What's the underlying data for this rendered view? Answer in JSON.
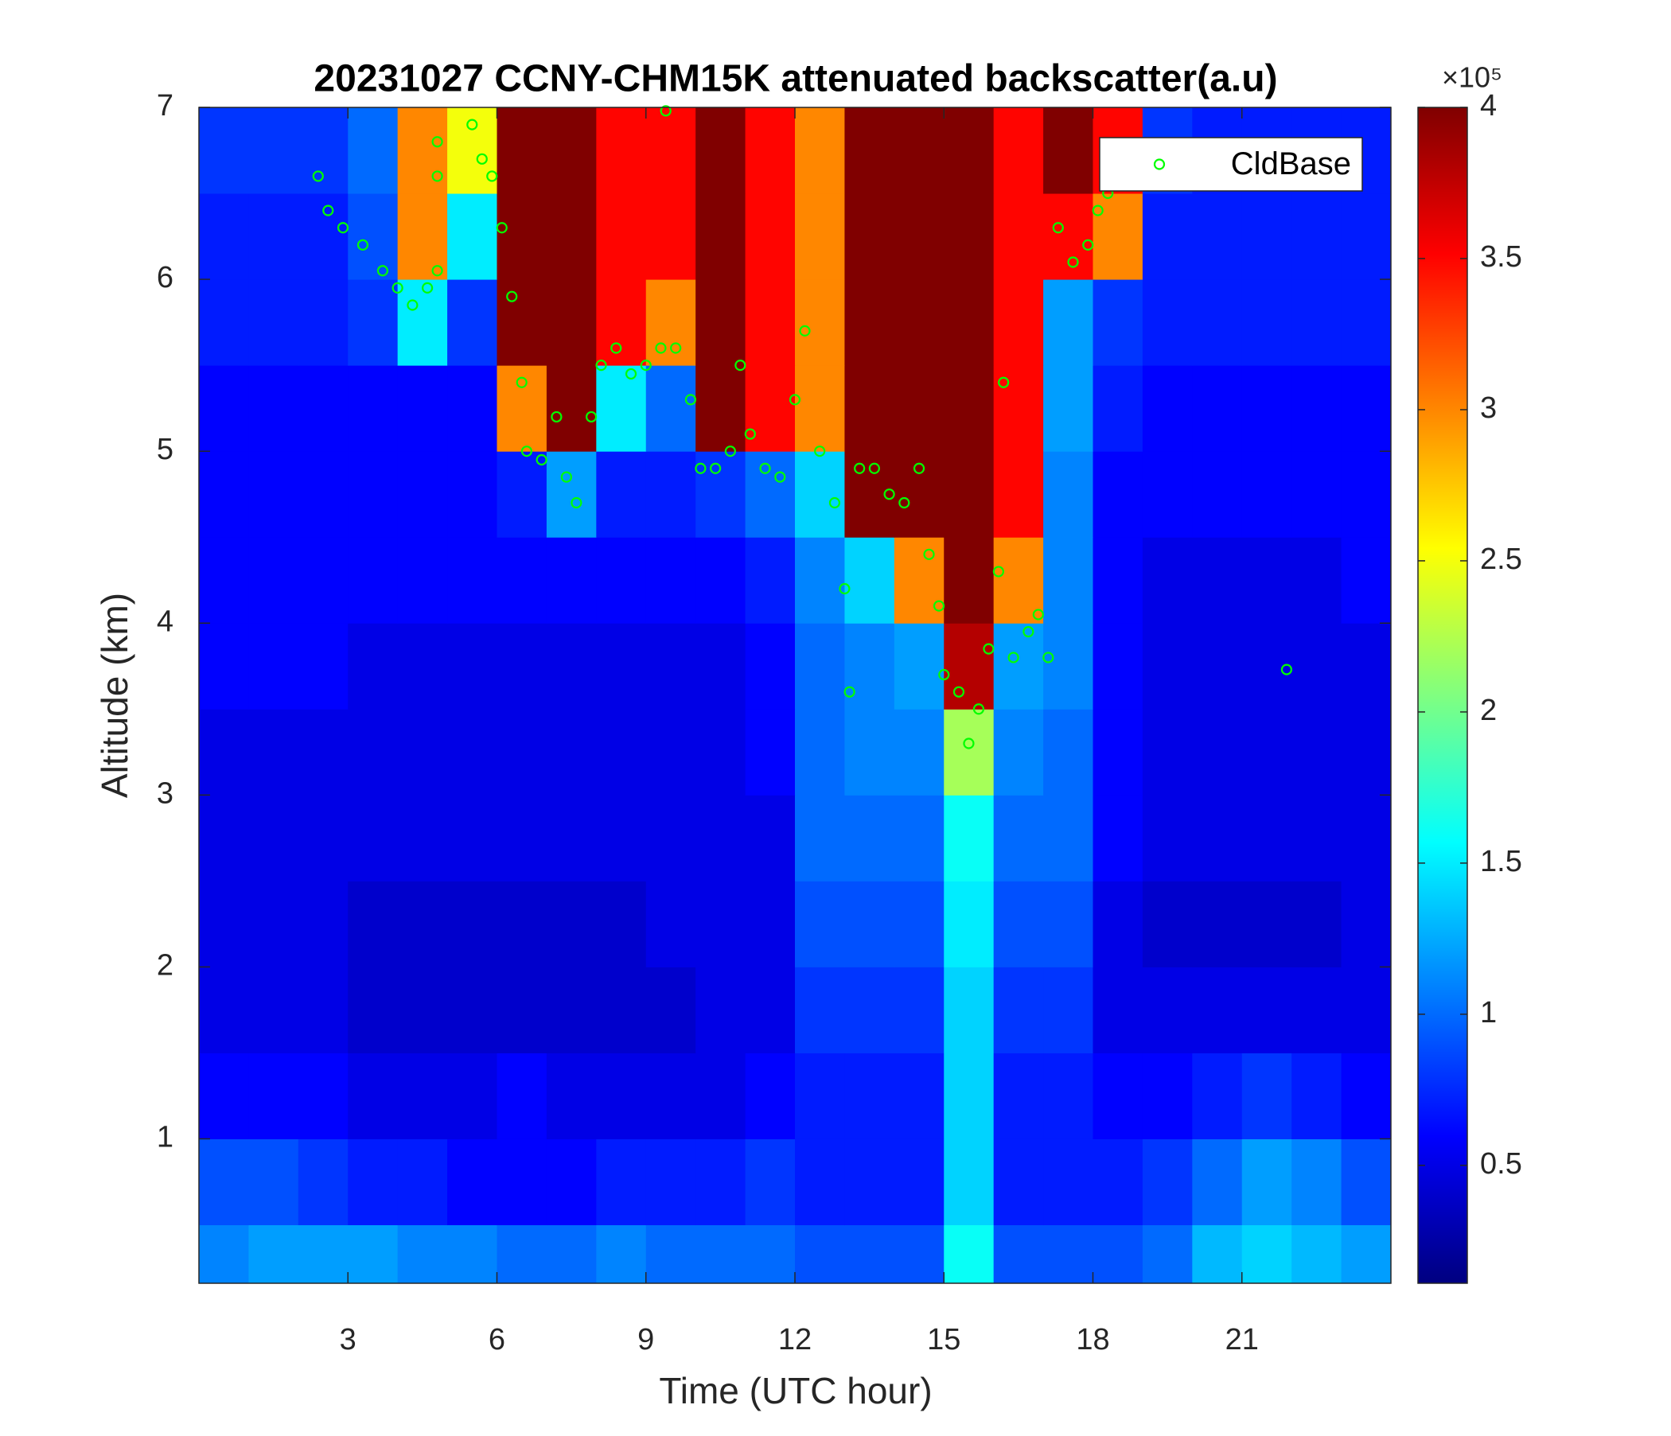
{
  "chart_data": {
    "type": "heatmap",
    "title": "20231027 CCNY-CHM15K attenuated backscatter(a.u)",
    "xlabel": "Time (UTC hour)",
    "ylabel": "Altitude (km)",
    "xlim": [
      0,
      24
    ],
    "ylim": [
      0.16,
      7
    ],
    "xticks": [
      3,
      6,
      9,
      12,
      15,
      18,
      21
    ],
    "yticks": [
      1,
      2,
      3,
      4,
      5,
      6,
      7
    ],
    "x_edges": [
      0,
      1,
      2,
      3,
      4,
      5,
      6,
      7,
      8,
      9,
      10,
      11,
      12,
      13,
      14,
      15,
      16,
      17,
      18,
      19,
      20,
      21,
      22,
      23,
      24
    ],
    "y_edges": [
      0.16,
      0.5,
      1,
      1.5,
      2,
      2.5,
      3,
      3.5,
      4,
      4.5,
      5,
      5.5,
      6,
      6.5,
      7
    ],
    "z": [
      [
        1.1,
        1.2,
        1.2,
        1.2,
        1.1,
        1.1,
        1.0,
        1.0,
        1.1,
        1.0,
        1.0,
        1.0,
        0.9,
        0.9,
        0.9,
        1.6,
        0.9,
        0.9,
        0.9,
        1.0,
        1.3,
        1.4,
        1.3,
        1.2
      ],
      [
        0.9,
        0.9,
        0.8,
        0.7,
        0.7,
        0.6,
        0.6,
        0.6,
        0.7,
        0.7,
        0.7,
        0.8,
        0.7,
        0.7,
        0.7,
        1.4,
        0.7,
        0.7,
        0.7,
        0.8,
        1.0,
        1.2,
        1.1,
        0.9
      ],
      [
        0.6,
        0.6,
        0.6,
        0.5,
        0.5,
        0.5,
        0.6,
        0.5,
        0.5,
        0.5,
        0.5,
        0.6,
        0.7,
        0.7,
        0.7,
        1.4,
        0.7,
        0.7,
        0.6,
        0.6,
        0.7,
        0.8,
        0.7,
        0.6
      ],
      [
        0.5,
        0.5,
        0.5,
        0.4,
        0.4,
        0.4,
        0.4,
        0.4,
        0.4,
        0.4,
        0.5,
        0.5,
        0.8,
        0.8,
        0.8,
        1.4,
        0.8,
        0.8,
        0.5,
        0.5,
        0.5,
        0.5,
        0.5,
        0.5
      ],
      [
        0.5,
        0.5,
        0.5,
        0.4,
        0.4,
        0.4,
        0.4,
        0.4,
        0.4,
        0.5,
        0.5,
        0.5,
        0.9,
        0.9,
        0.9,
        1.5,
        0.9,
        0.9,
        0.5,
        0.4,
        0.4,
        0.4,
        0.4,
        0.5
      ],
      [
        0.5,
        0.5,
        0.5,
        0.5,
        0.5,
        0.5,
        0.5,
        0.5,
        0.5,
        0.5,
        0.5,
        0.5,
        1.0,
        1.0,
        1.0,
        1.6,
        1.0,
        1.0,
        0.6,
        0.5,
        0.5,
        0.5,
        0.5,
        0.5
      ],
      [
        0.5,
        0.5,
        0.5,
        0.5,
        0.5,
        0.5,
        0.5,
        0.5,
        0.5,
        0.5,
        0.5,
        0.6,
        1.0,
        1.1,
        1.1,
        2.2,
        1.1,
        1.0,
        0.6,
        0.5,
        0.5,
        0.5,
        0.5,
        0.5
      ],
      [
        0.6,
        0.6,
        0.6,
        0.5,
        0.5,
        0.5,
        0.5,
        0.5,
        0.5,
        0.5,
        0.5,
        0.6,
        1.0,
        1.1,
        1.2,
        3.8,
        1.2,
        1.1,
        0.6,
        0.5,
        0.5,
        0.5,
        0.5,
        0.5
      ],
      [
        0.6,
        0.6,
        0.6,
        0.6,
        0.6,
        0.6,
        0.6,
        0.6,
        0.6,
        0.6,
        0.6,
        0.7,
        1.1,
        1.4,
        3.0,
        4,
        3.0,
        1.1,
        0.6,
        0.5,
        0.5,
        0.5,
        0.5,
        0.6
      ],
      [
        0.6,
        0.6,
        0.6,
        0.6,
        0.6,
        0.6,
        0.7,
        1.2,
        0.7,
        0.7,
        0.8,
        1.0,
        1.4,
        4,
        4,
        4,
        3.5,
        1.1,
        0.6,
        0.6,
        0.6,
        0.6,
        0.6,
        0.6
      ],
      [
        0.6,
        0.6,
        0.6,
        0.6,
        0.6,
        0.6,
        3.0,
        4,
        1.5,
        1.0,
        4,
        3.5,
        3.0,
        4,
        4,
        4,
        3.5,
        1.2,
        0.7,
        0.6,
        0.6,
        0.6,
        0.6,
        0.6
      ],
      [
        0.7,
        0.7,
        0.7,
        0.8,
        1.5,
        0.8,
        4,
        4,
        3.5,
        3.0,
        4,
        3.5,
        3.0,
        4,
        4,
        4,
        3.5,
        1.2,
        0.8,
        0.7,
        0.7,
        0.7,
        0.7,
        0.7
      ],
      [
        0.7,
        0.7,
        0.7,
        0.9,
        3.0,
        1.5,
        4,
        4,
        3.5,
        3.5,
        4,
        3.5,
        3.0,
        4,
        4,
        4,
        3.5,
        3.5,
        3.0,
        0.7,
        0.7,
        0.7,
        0.7,
        0.7
      ],
      [
        0.8,
        0.8,
        0.8,
        1.0,
        3.0,
        2.5,
        4,
        4,
        3.5,
        3.5,
        4,
        3.5,
        3.0,
        4,
        4,
        4,
        3.5,
        4,
        3.5,
        0.8,
        0.7,
        0.7,
        0.7,
        0.7
      ]
    ],
    "colormap": "jet",
    "clim": [
      0.11,
      4
    ],
    "cticks": [
      0.5,
      1,
      1.5,
      2,
      2.5,
      3,
      3.5,
      4
    ],
    "cscale_label": "×10⁵",
    "legend": "northeast",
    "series": [
      {
        "name": "CldBase",
        "type": "scatter",
        "color": "#00ff00",
        "marker": "circle",
        "x": [
          2.4,
          2.6,
          2.9,
          3.3,
          3.7,
          4.0,
          4.3,
          4.6,
          4.8,
          4.8,
          4.8,
          5.5,
          5.7,
          5.9,
          6.1,
          6.3,
          6.5,
          6.6,
          6.9,
          7.2,
          7.4,
          7.6,
          7.9,
          8.1,
          8.4,
          8.7,
          9.0,
          9.3,
          9.4,
          9.6,
          9.9,
          10.1,
          10.4,
          10.7,
          10.9,
          11.1,
          11.4,
          11.7,
          12.0,
          12.2,
          12.5,
          12.8,
          13.0,
          13.1,
          13.3,
          13.6,
          13.9,
          14.2,
          14.5,
          14.7,
          14.9,
          15.0,
          15.3,
          15.5,
          15.7,
          15.9,
          16.1,
          16.2,
          16.4,
          16.7,
          16.9,
          17.1,
          17.3,
          17.6,
          17.9,
          18.1,
          18.3,
          21.9
        ],
        "y": [
          6.6,
          6.4,
          6.3,
          6.2,
          6.05,
          5.95,
          5.85,
          5.95,
          6.05,
          6.6,
          6.8,
          6.9,
          6.7,
          6.6,
          6.3,
          5.9,
          5.4,
          5.0,
          4.95,
          5.2,
          4.85,
          4.7,
          5.2,
          5.5,
          5.6,
          5.45,
          5.5,
          5.6,
          6.98,
          5.6,
          5.3,
          4.9,
          4.9,
          5.0,
          5.5,
          5.1,
          4.9,
          4.85,
          5.3,
          5.7,
          5.0,
          4.7,
          4.2,
          3.6,
          4.9,
          4.9,
          4.75,
          4.7,
          4.9,
          4.4,
          4.1,
          3.7,
          3.6,
          3.3,
          3.5,
          3.85,
          4.3,
          5.4,
          3.8,
          3.95,
          4.05,
          3.8,
          6.3,
          6.1,
          6.2,
          6.4,
          6.5,
          3.73
        ]
      }
    ]
  }
}
